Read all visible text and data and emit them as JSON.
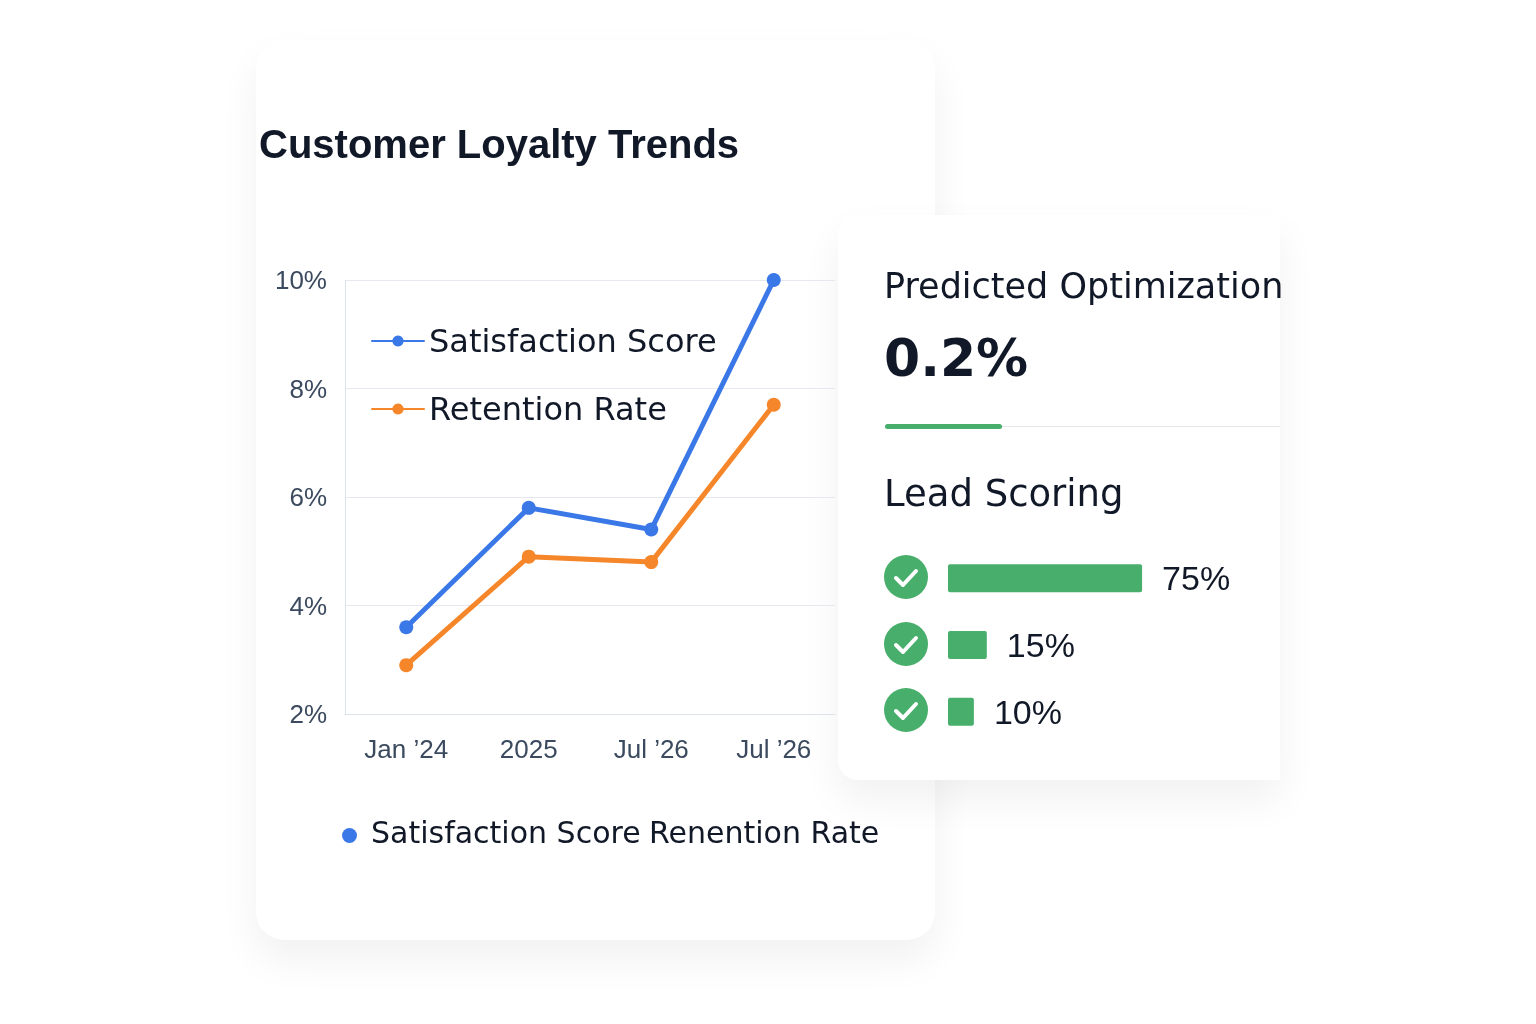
{
  "chart_data": [
    {
      "type": "line",
      "title": "Customer Loyalty Trends",
      "categories": [
        "Jan ’24",
        "2025",
        "Jul ’26",
        "Jul ’26"
      ],
      "series": [
        {
          "name": "Satisfaction Score",
          "color": "#3b78e7",
          "values": [
            3.6,
            5.8,
            5.4,
            10.0
          ]
        },
        {
          "name": "Retention Rate",
          "color": "#f5862a",
          "values": [
            2.9,
            4.9,
            4.8,
            7.7
          ]
        }
      ],
      "ylim": [
        2,
        10
      ],
      "yticks": [
        {
          "value": 2,
          "label": "2%"
        },
        {
          "value": 4,
          "label": "4%"
        },
        {
          "value": 6,
          "label": "6%"
        },
        {
          "value": 8,
          "label": "8%"
        },
        {
          "value": 10,
          "label": "10%"
        }
      ],
      "grid": "y",
      "legend": "top left",
      "marker": "circle",
      "annotations": [
        "Satisfaction Score",
        "Renention Rate"
      ]
    },
    {
      "type": "other",
      "title": "Predicted Optimization",
      "annotations": [
        "0.2%"
      ]
    },
    {
      "type": "bar",
      "orientation": "horizontal",
      "title": "Lead Scoring",
      "categories": [
        null,
        null,
        null
      ],
      "values": [
        75,
        15,
        10
      ],
      "color": "#48ae6b",
      "value_labels": [
        "75%",
        "15%",
        "10%"
      ]
    }
  ]
}
